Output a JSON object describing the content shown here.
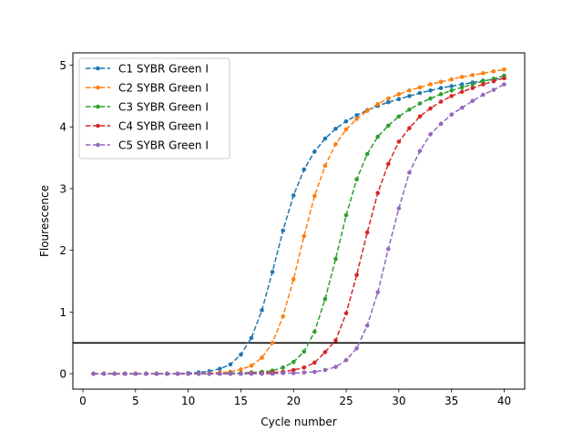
{
  "chart_data": {
    "type": "line",
    "title": "",
    "xlabel": "Cycle number",
    "ylabel": "Flourescence",
    "xlim": [
      -0.95,
      41.95
    ],
    "ylim": [
      -0.25,
      5.2
    ],
    "xticks": [
      0,
      5,
      10,
      15,
      20,
      25,
      30,
      35,
      40
    ],
    "yticks": [
      0,
      1,
      2,
      3,
      4,
      5
    ],
    "grid": false,
    "legend_position": "top-left",
    "threshold": 0.5,
    "threshold_color": "#000000",
    "x": [
      1,
      2,
      3,
      4,
      5,
      6,
      7,
      8,
      9,
      10,
      11,
      12,
      13,
      14,
      15,
      16,
      17,
      18,
      19,
      20,
      21,
      22,
      23,
      24,
      25,
      26,
      27,
      28,
      29,
      30,
      31,
      32,
      33,
      34,
      35,
      36,
      37,
      38,
      39,
      40
    ],
    "series": [
      {
        "name": "C1 SYBR Green I",
        "color": "#1f77b4",
        "values": [
          0,
          0,
          0,
          0,
          0,
          0,
          0,
          0,
          0,
          0.01,
          0.02,
          0.04,
          0.08,
          0.15,
          0.31,
          0.58,
          1.03,
          1.65,
          2.32,
          2.89,
          3.31,
          3.6,
          3.81,
          3.97,
          4.09,
          4.19,
          4.27,
          4.34,
          4.4,
          4.45,
          4.5,
          4.55,
          4.59,
          4.63,
          4.66,
          4.69,
          4.72,
          4.75,
          4.77,
          4.79
        ]
      },
      {
        "name": "C2 SYBR Green I",
        "color": "#ff7f0e",
        "values": [
          0,
          0,
          0,
          0,
          0,
          0,
          0,
          0,
          0,
          0,
          0,
          0.01,
          0.02,
          0.03,
          0.07,
          0.13,
          0.26,
          0.5,
          0.93,
          1.53,
          2.23,
          2.88,
          3.37,
          3.72,
          3.96,
          4.13,
          4.26,
          4.37,
          4.46,
          4.53,
          4.59,
          4.64,
          4.69,
          4.73,
          4.77,
          4.81,
          4.84,
          4.87,
          4.9,
          4.93
        ]
      },
      {
        "name": "C3 SYBR Green I",
        "color": "#2ca02c",
        "values": [
          0,
          0,
          0,
          0,
          0,
          0,
          0,
          0,
          0,
          0,
          0,
          0,
          0,
          0.01,
          0.01,
          0.02,
          0.03,
          0.05,
          0.1,
          0.19,
          0.36,
          0.68,
          1.21,
          1.86,
          2.57,
          3.15,
          3.56,
          3.84,
          4.02,
          4.17,
          4.28,
          4.38,
          4.46,
          4.53,
          4.59,
          4.64,
          4.69,
          4.74,
          4.78,
          4.83
        ]
      },
      {
        "name": "C4 SYBR Green I",
        "color": "#d62728",
        "values": [
          0,
          0,
          0,
          0,
          0,
          0,
          0,
          0,
          0,
          0,
          0,
          0,
          0,
          0,
          0,
          0.01,
          0.01,
          0.02,
          0.03,
          0.06,
          0.1,
          0.18,
          0.35,
          0.54,
          0.98,
          1.6,
          2.29,
          2.93,
          3.4,
          3.76,
          3.98,
          4.17,
          4.3,
          4.41,
          4.5,
          4.57,
          4.63,
          4.69,
          4.74,
          4.79
        ]
      },
      {
        "name": "C5 SYBR Green I",
        "color": "#9467bd",
        "values": [
          0,
          0,
          0,
          0,
          0,
          0,
          0,
          0,
          0,
          0,
          0,
          0,
          0,
          0,
          0,
          0,
          0,
          0,
          0.01,
          0.01,
          0.02,
          0.03,
          0.06,
          0.11,
          0.22,
          0.41,
          0.78,
          1.32,
          2.02,
          2.68,
          3.26,
          3.61,
          3.88,
          4.05,
          4.2,
          4.31,
          4.42,
          4.52,
          4.6,
          4.69
        ]
      }
    ]
  }
}
